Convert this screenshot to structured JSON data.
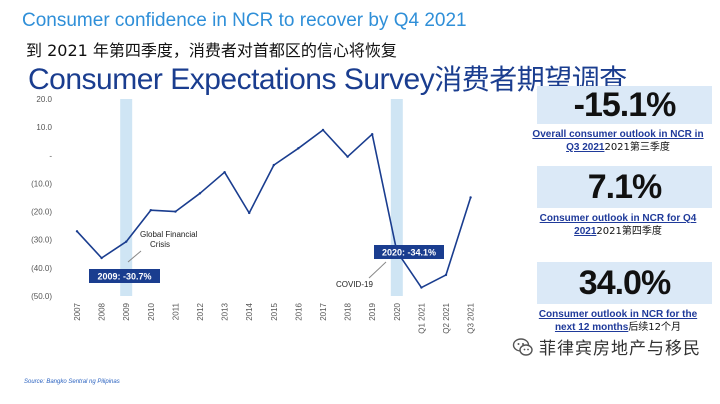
{
  "header": {
    "title": "Consumer confidence in NCR to recover by Q4 2021",
    "title_cn": "到 2021 年第四季度，消费者对首都区的信心将恢复",
    "survey_title_en": "Consumer Expectations Survey",
    "survey_title_cn": "消费者期望调查"
  },
  "chart_data": {
    "type": "line",
    "categories": [
      "2007",
      "2008",
      "2009",
      "2010",
      "2011",
      "2012",
      "2013",
      "2014",
      "2015",
      "2016",
      "2017",
      "2018",
      "2019",
      "2020",
      "Q1 2021",
      "Q2 2021",
      "Q3 2021"
    ],
    "y_tick_labels": [
      "20.0",
      "10.0",
      "-",
      "(10.0)",
      "(20.0)",
      "(30.0)",
      "(40.0)",
      "(50.0)"
    ],
    "ylim": [
      -50,
      20
    ],
    "series": [
      {
        "values": [
          -27,
          -36.5,
          -30.7,
          -19.5,
          -20,
          -13.5,
          -6,
          -20.5,
          -3.5,
          2.5,
          9,
          -0.5,
          7.5,
          -34.1,
          -47,
          -42.5,
          -15
        ]
      }
    ],
    "highlight_bands": [
      "2009",
      "2020"
    ],
    "callouts": [
      {
        "label": "2009: -30.7%",
        "category": "2009"
      },
      {
        "label": "2020: -34.1%",
        "category": "2020"
      }
    ],
    "annotations": [
      {
        "lines": [
          "Global Financial",
          "Crisis"
        ]
      },
      {
        "lines": [
          "COVID-19"
        ]
      }
    ],
    "line_color": "#1a3d8f",
    "band_color": "#cfe5f4",
    "callout_color": "#1a3d8f"
  },
  "stats": [
    {
      "value": "-15.1%",
      "caption_en_1": "Overall consumer outlook in NCR  in",
      "caption_en_2": "Q3 2021",
      "caption_cn_2": "2021第三季度"
    },
    {
      "value": "7.1%",
      "caption_en_1": "Consumer outlook in NCR for  Q4",
      "caption_en_2": "2021",
      "caption_cn_2": "2021第四季度"
    },
    {
      "value": "34.0%",
      "caption_en_1": "Consumer outlook in NCR for the",
      "caption_en_2": "next 12 months",
      "caption_cn_2": "后续12个月"
    }
  ],
  "source": "Source: Bangko Sentral ng Pilipinas",
  "watermark": "菲律宾房地产与移民",
  "colors": {
    "title": "#2f8fd8",
    "survey_title": "#1a3d8f",
    "stat_box": "#dbe9f7",
    "link": "#1f3a9a"
  }
}
